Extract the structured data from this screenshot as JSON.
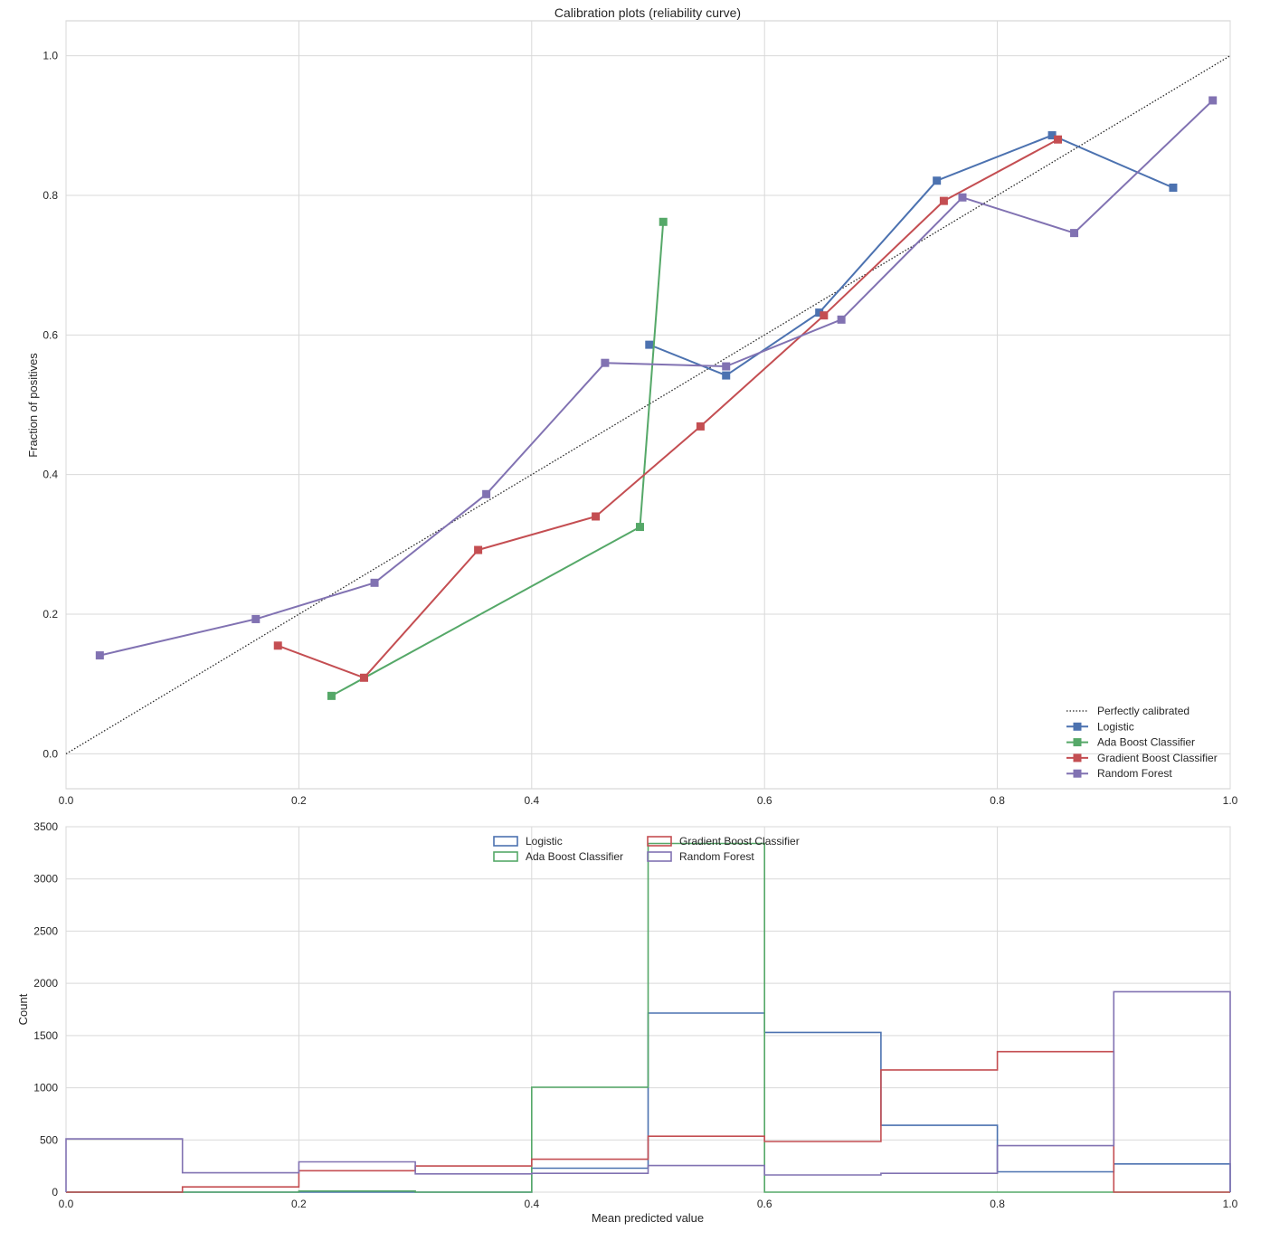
{
  "chart_data": [
    {
      "type": "line",
      "title": "Calibration plots  (reliability curve)",
      "xlabel": "",
      "ylabel": "Fraction of positives",
      "xlim": [
        0.0,
        1.0
      ],
      "ylim": [
        -0.05,
        1.05
      ],
      "xticks": [
        "0.0",
        "0.2",
        "0.4",
        "0.6",
        "0.8",
        "1.0"
      ],
      "yticks": [
        "0.0",
        "0.2",
        "0.4",
        "0.6",
        "0.8",
        "1.0"
      ],
      "grid": true,
      "legend": "lower-right",
      "series": [
        {
          "name": "Perfectly calibrated",
          "color": "#262626",
          "style": "dotted",
          "x": [
            0.0,
            1.0
          ],
          "y": [
            0.0,
            1.0
          ]
        },
        {
          "name": "Logistic",
          "color": "#4c72b0",
          "marker": "square",
          "x": [
            0.501,
            0.567,
            0.647,
            0.748,
            0.847,
            0.951
          ],
          "y": [
            0.586,
            0.542,
            0.632,
            0.821,
            0.886,
            0.811
          ]
        },
        {
          "name": "Ada Boost Classifier",
          "color": "#55a868",
          "marker": "square",
          "x": [
            0.228,
            0.493,
            0.513
          ],
          "y": [
            0.083,
            0.325,
            0.762
          ]
        },
        {
          "name": "Gradient Boost Classifier",
          "color": "#c44e52",
          "marker": "square",
          "x": [
            0.182,
            0.256,
            0.354,
            0.455,
            0.545,
            0.651,
            0.754,
            0.852
          ],
          "y": [
            0.155,
            0.109,
            0.292,
            0.34,
            0.469,
            0.628,
            0.792,
            0.88
          ]
        },
        {
          "name": "Random Forest",
          "color": "#8172b2",
          "marker": "square",
          "x": [
            0.029,
            0.163,
            0.265,
            0.361,
            0.463,
            0.567,
            0.666,
            0.77,
            0.866,
            0.985
          ],
          "y": [
            0.141,
            0.193,
            0.245,
            0.372,
            0.56,
            0.555,
            0.622,
            0.797,
            0.746,
            0.936
          ]
        }
      ]
    },
    {
      "type": "bar",
      "histtype": "step",
      "title": "",
      "xlabel": "Mean predicted value",
      "ylabel": "Count",
      "xlim": [
        0.0,
        1.0
      ],
      "ylim": [
        0,
        3500
      ],
      "xticks": [
        "0.0",
        "0.2",
        "0.4",
        "0.6",
        "0.8",
        "1.0"
      ],
      "yticks": [
        "0",
        "500",
        "1000",
        "1500",
        "2000",
        "2500",
        "3000",
        "3500"
      ],
      "grid": true,
      "legend": "upper-center",
      "bin_edges": [
        0.0,
        0.1,
        0.2,
        0.3,
        0.4,
        0.5,
        0.6,
        0.7,
        0.8,
        0.9,
        1.0
      ],
      "series": [
        {
          "name": "Logistic",
          "color": "#4c72b0",
          "values": [
            0,
            0,
            0,
            0,
            230,
            1715,
            1530,
            640,
            195,
            270
          ]
        },
        {
          "name": "Ada Boost Classifier",
          "color": "#55a868",
          "values": [
            0,
            0,
            10,
            0,
            1005,
            3340,
            0,
            0,
            0,
            0
          ]
        },
        {
          "name": "Gradient Boost Classifier",
          "color": "#c44e52",
          "values": [
            0,
            50,
            205,
            250,
            315,
            535,
            485,
            1170,
            1345,
            0
          ]
        },
        {
          "name": "Random Forest",
          "color": "#8172b2",
          "values": [
            510,
            185,
            290,
            175,
            180,
            255,
            165,
            180,
            445,
            1920
          ]
        }
      ]
    }
  ]
}
